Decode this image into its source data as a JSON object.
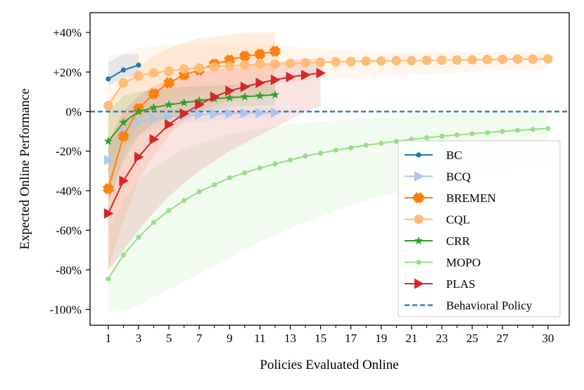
{
  "chart_data": {
    "type": "line",
    "title": "",
    "xlabel": "Policies Evaluated Online",
    "ylabel": "Expected Online Performance",
    "xlim": [
      -0.2,
      31.4
    ],
    "ylim": [
      -108,
      50
    ],
    "x_ticks": [
      1,
      3,
      5,
      7,
      9,
      11,
      13,
      15,
      17,
      19,
      21,
      23,
      25,
      27,
      30
    ],
    "x_minor_ticks": [
      2,
      4,
      6,
      8,
      10,
      12,
      14,
      16,
      18,
      20,
      22,
      24,
      26,
      28,
      29
    ],
    "y_ticks": [
      {
        "value": 40,
        "label": "+40%"
      },
      {
        "value": 20,
        "label": "+20%"
      },
      {
        "value": 0,
        "label": "0%"
      },
      {
        "value": -20,
        "label": "-20%"
      },
      {
        "value": -40,
        "label": "-40%"
      },
      {
        "value": -60,
        "label": "-60%"
      },
      {
        "value": -80,
        "label": "-80%"
      },
      {
        "value": -100,
        "label": "-100%"
      }
    ],
    "legend_position": "lower-right",
    "series": [
      {
        "name": "BC",
        "color": "#1f77b4",
        "marker": "dot",
        "x": [
          1,
          2,
          3
        ],
        "values": [
          16.5,
          21,
          23.5
        ],
        "band_low": [
          13,
          17,
          19
        ],
        "band_high": [
          25,
          29,
          29
        ]
      },
      {
        "name": "BCQ",
        "color": "#aec7e8",
        "marker": "triangle-right",
        "x": [
          1,
          2,
          3,
          4,
          5,
          6,
          7,
          8,
          9,
          10,
          11,
          12
        ],
        "values": [
          -24.5,
          -10,
          -5,
          -3.5,
          -2.5,
          -2,
          -1.5,
          -1.2,
          -1,
          -0.8,
          -0.6,
          -0.5
        ],
        "band_low": [
          -30,
          -18,
          -12,
          -9,
          -7,
          -6,
          -5,
          -4.5,
          -4,
          -3.5,
          -3,
          -3
        ],
        "band_high": [
          -18,
          -4,
          0,
          0.5,
          1,
          1,
          1.5,
          1.5,
          1.5,
          1.5,
          2,
          2
        ]
      },
      {
        "name": "BREMEN",
        "color": "#ff7f0e",
        "marker": "x",
        "x": [
          1,
          2,
          3,
          4,
          5,
          6,
          7,
          8,
          9,
          10,
          11,
          12
        ],
        "values": [
          -39,
          -12.5,
          1.5,
          9,
          14.5,
          18.5,
          21,
          24,
          26,
          28,
          29,
          30.5
        ],
        "band_low": [
          -80,
          -55,
          -35,
          -22,
          -12,
          -5,
          0,
          3,
          5,
          7,
          9,
          10
        ],
        "band_high": [
          5,
          15,
          22,
          28,
          32,
          35,
          37,
          38,
          39,
          40,
          40,
          40
        ]
      },
      {
        "name": "CQL",
        "color": "#ffbb78",
        "marker": "circle",
        "x": [
          1,
          2,
          3,
          4,
          5,
          6,
          7,
          8,
          9,
          10,
          11,
          12,
          13,
          14,
          15,
          16,
          17,
          18,
          19,
          20,
          21,
          22,
          23,
          24,
          25,
          26,
          27,
          28,
          29,
          30
        ],
        "values": [
          3,
          14.5,
          18,
          19.5,
          20.5,
          21.5,
          22,
          22.5,
          23,
          23.5,
          24,
          24,
          24.3,
          24.6,
          24.9,
          25.1,
          25.3,
          25.5,
          25.6,
          25.7,
          25.8,
          25.9,
          26,
          26.1,
          26.2,
          26.3,
          26.4,
          26.5,
          26.5,
          26.6
        ],
        "band_low": [
          -55,
          -20,
          -5,
          2,
          6,
          8,
          10,
          11,
          12,
          13,
          14,
          14.5,
          15,
          15.5,
          16,
          16.5,
          17,
          17.5,
          18,
          18.3,
          18.6,
          19,
          19.3,
          19.6,
          20,
          20.3,
          20.6,
          21,
          21.3,
          21.5
        ],
        "band_high": [
          28,
          30,
          32,
          33,
          34,
          34,
          34,
          34,
          34,
          34,
          34,
          34,
          33,
          32,
          32,
          31,
          31,
          30.5,
          30.5,
          30,
          30,
          30,
          30,
          30,
          30,
          30,
          30,
          30,
          30,
          30
        ]
      },
      {
        "name": "CRR",
        "color": "#2ca02c",
        "marker": "star",
        "x": [
          1,
          2,
          3,
          4,
          5,
          6,
          7,
          8,
          9,
          10,
          11,
          12
        ],
        "values": [
          -15,
          -5.5,
          0,
          2,
          3.5,
          4.5,
          5.5,
          6.5,
          7,
          7.5,
          8,
          8.5
        ],
        "band_low": [
          -45,
          -25,
          -12,
          -6,
          -3,
          -1,
          0,
          1,
          2,
          2.5,
          3,
          3
        ],
        "band_high": [
          0,
          8,
          10,
          11,
          12,
          12.5,
          13,
          13,
          13.5,
          14,
          14,
          14.5
        ]
      },
      {
        "name": "MOPO",
        "color": "#98df8a",
        "marker": "dot",
        "x": [
          1,
          2,
          3,
          4,
          5,
          6,
          7,
          8,
          9,
          10,
          11,
          12,
          13,
          14,
          15,
          16,
          17,
          18,
          19,
          20,
          21,
          22,
          23,
          24,
          25,
          26,
          27,
          28,
          29,
          30
        ],
        "values": [
          -84.5,
          -72.5,
          -63.5,
          -56,
          -50,
          -45,
          -40.5,
          -37,
          -33.5,
          -31,
          -28.5,
          -26.5,
          -24.5,
          -22.5,
          -21,
          -19.5,
          -18.3,
          -17,
          -16,
          -15,
          -14,
          -13.2,
          -12.5,
          -11.8,
          -11.2,
          -10.6,
          -10,
          -9.5,
          -9,
          -8.5
        ],
        "band_low": [
          -101,
          -101,
          -98,
          -94,
          -90,
          -86,
          -82,
          -78,
          -74,
          -70,
          -66,
          -62.5,
          -59,
          -56,
          -53,
          -50,
          -47.5,
          -45,
          -43,
          -41,
          -39,
          -37,
          -35.5,
          -34,
          -32.5,
          -31,
          -30,
          -29,
          -28,
          -27
        ],
        "band_high": [
          -60,
          -45,
          -35,
          -28,
          -23,
          -19,
          -16,
          -13.5,
          -11.5,
          -10,
          -8.5,
          -7.5,
          -6.5,
          -5.5,
          -5,
          -4.5,
          -4,
          -3.5,
          -3,
          -2.5,
          -2,
          -1.5,
          -1.2,
          -1,
          -0.8,
          -0.6,
          -0.4,
          -0.2,
          0,
          0
        ]
      },
      {
        "name": "PLAS",
        "color": "#d62728",
        "marker": "triangle-right",
        "x": [
          1,
          2,
          3,
          4,
          5,
          6,
          7,
          8,
          9,
          10,
          11,
          12,
          13,
          14,
          15
        ],
        "values": [
          -51.5,
          -35,
          -23,
          -14,
          -6.5,
          -1,
          3.5,
          7.5,
          10.5,
          12.5,
          14.5,
          16,
          17.5,
          18.5,
          19.5
        ],
        "band_low": [
          -80,
          -70,
          -60,
          -51,
          -43,
          -36,
          -30,
          -25,
          -20,
          -16,
          -12,
          -8,
          -4,
          0,
          3
        ],
        "band_high": [
          -15,
          0,
          8,
          13,
          16,
          18,
          20,
          21,
          22,
          23,
          24,
          25,
          26,
          26.5,
          27
        ]
      },
      {
        "name": "Behavioral Policy",
        "color": "#1f77b4",
        "marker": "none",
        "dashed": true,
        "x": [
          -0.2,
          31.4
        ],
        "values": [
          0,
          0
        ]
      }
    ]
  }
}
